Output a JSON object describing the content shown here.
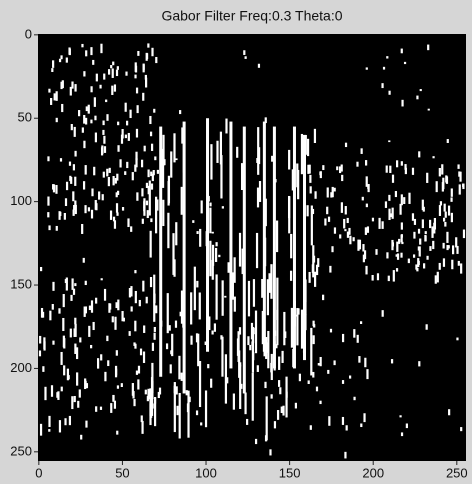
{
  "chart_data": {
    "type": "image",
    "title": "Gabor Filter Freq:0.3 Theta:0",
    "xlim": [
      -0.5,
      255.5
    ],
    "ylim": [
      255.5,
      -0.5
    ],
    "xticks": [
      0,
      50,
      100,
      150,
      200,
      250
    ],
    "yticks": [
      0,
      50,
      100,
      150,
      200,
      250
    ],
    "background": "#000000",
    "color": "#ffffff"
  }
}
